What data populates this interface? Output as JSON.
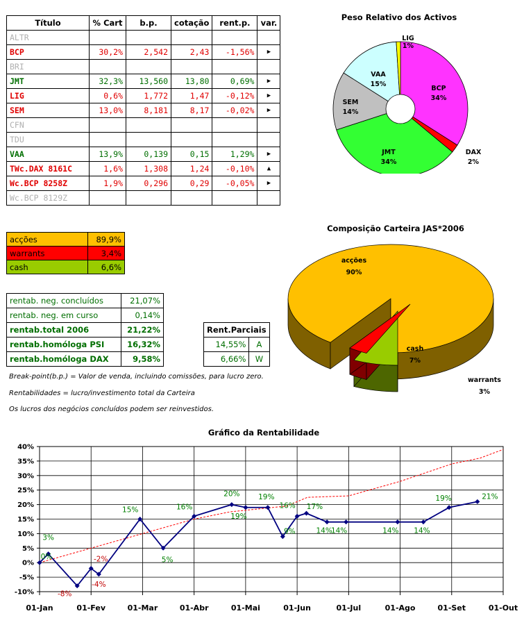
{
  "portfolio": {
    "headers": [
      "Título",
      "% Cart",
      "b.p.",
      "cotação",
      "rent.p.",
      "var."
    ],
    "rows": [
      {
        "ticker": "ALTR",
        "pct": "",
        "bp": "",
        "quote": "",
        "rent": "",
        "var": "",
        "color": "grey"
      },
      {
        "ticker": "BCP",
        "pct": "30,2%",
        "bp": "2,542",
        "quote": "2,43",
        "rent": "-1,56%",
        "var": "▶",
        "color": "red"
      },
      {
        "ticker": "BRI",
        "pct": "",
        "bp": "",
        "quote": "",
        "rent": "",
        "var": "",
        "color": "grey"
      },
      {
        "ticker": "JMT",
        "pct": "32,3%",
        "bp": "13,560",
        "quote": "13,80",
        "rent": "0,69%",
        "var": "▶",
        "color": "green"
      },
      {
        "ticker": "LIG",
        "pct": "0,6%",
        "bp": "1,772",
        "quote": "1,47",
        "rent": "-0,12%",
        "var": "▶",
        "color": "red"
      },
      {
        "ticker": "SEM",
        "pct": "13,0%",
        "bp": "8,181",
        "quote": "8,17",
        "rent": "-0,02%",
        "var": "▶",
        "color": "red"
      },
      {
        "ticker": "CFN",
        "pct": "",
        "bp": "",
        "quote": "",
        "rent": "",
        "var": "",
        "color": "grey"
      },
      {
        "ticker": "TDU",
        "pct": "",
        "bp": "",
        "quote": "",
        "rent": "",
        "var": "",
        "color": "grey"
      },
      {
        "ticker": "VAA",
        "pct": "13,9%",
        "bp": "0,139",
        "quote": "0,15",
        "rent": "1,29%",
        "var": "▶",
        "color": "green"
      },
      {
        "ticker": "TWc.DAX 8161C",
        "pct": "1,6%",
        "bp": "1,308",
        "quote": "1,24",
        "rent": "-0,10%",
        "var": "▲",
        "color": "red"
      },
      {
        "ticker": "Wc.BCP 8258Z",
        "pct": "1,9%",
        "bp": "0,296",
        "quote": "0,29",
        "rent": "-0,05%",
        "var": "▶",
        "color": "red"
      },
      {
        "ticker": "Wc.BCP 8129Z",
        "pct": "",
        "bp": "",
        "quote": "",
        "rent": "",
        "var": "",
        "color": "grey"
      }
    ]
  },
  "allocation": [
    {
      "label": "acções",
      "value": "89,9%",
      "bg": "#ffc000"
    },
    {
      "label": "warrants",
      "value": "3,4%",
      "bg": "#ff0000"
    },
    {
      "label": "cash",
      "value": "6,6%",
      "bg": "#99cc00"
    }
  ],
  "returns": [
    {
      "label": "rentab. neg. concluídos",
      "value": "21,07%",
      "bold": false
    },
    {
      "label": "rentab. neg. em curso",
      "value": "0,14%",
      "bold": false
    },
    {
      "label": "rentab.total 2006",
      "value": "21,22%",
      "bold": true
    },
    {
      "label": "rentab.homóloga PSI",
      "value": "16,32%",
      "bold": true
    },
    {
      "label": "rentab.homóloga DAX",
      "value": "9,58%",
      "bold": true
    }
  ],
  "partial": {
    "header": "Rent.Parciais",
    "rows": [
      {
        "value": "14,55%",
        "tag": "A"
      },
      {
        "value": "6,66%",
        "tag": "W"
      }
    ]
  },
  "notes": {
    "bp": "Break-point(b.p.) = Valor de venda, incluindo comissões, para lucro zero.",
    "rent": "Rentabilidades = lucro/investimento total da Carteira",
    "profits": "Os lucros dos negócios concluídos podem ser reinvestidos."
  },
  "chart_data": [
    {
      "type": "pie",
      "title": "Peso Relativo dos Activos",
      "slices": [
        {
          "label": "BCP",
          "value": 34,
          "color": "#ff33ff"
        },
        {
          "label": "DAX",
          "value": 2,
          "color": "#ff0000"
        },
        {
          "label": "JMT",
          "value": 34,
          "color": "#33ff33"
        },
        {
          "label": "SEM",
          "value": 14,
          "color": "#c0c0c0"
        },
        {
          "label": "VAA",
          "value": 15,
          "color": "#ccffff"
        },
        {
          "label": "LIG",
          "value": 1,
          "color": "#ffff00"
        }
      ]
    },
    {
      "type": "pie",
      "title": "Composição Carteira JAS*2006",
      "slices": [
        {
          "label": "acções",
          "value": 90,
          "color": "#ffc000"
        },
        {
          "label": "cash",
          "value": 7,
          "color": "#99cc00"
        },
        {
          "label": "warrants",
          "value": 3,
          "color": "#ff0000"
        }
      ]
    },
    {
      "type": "line",
      "title": "Gráfico da Rentabilidade",
      "x_ticks": [
        "01-Jan",
        "01-Fev",
        "01-Mar",
        "01-Abr",
        "01-Mai",
        "01-Jun",
        "01-Jul",
        "01-Ago",
        "01-Set",
        "01-Out"
      ],
      "ylim": [
        -10,
        40
      ],
      "y_ticks": [
        "-10%",
        "-5%",
        "0%",
        "5%",
        "10%",
        "15%",
        "20%",
        "25%",
        "30%",
        "35%",
        "40%"
      ],
      "series": [
        {
          "points": [
            [
              0,
              0
            ],
            [
              0.17,
              3
            ],
            [
              0.73,
              -8
            ],
            [
              1.0,
              -2
            ],
            [
              1.15,
              -4
            ],
            [
              1.95,
              15
            ],
            [
              2.4,
              5
            ],
            [
              3.0,
              16
            ],
            [
              3.73,
              20
            ],
            [
              4.0,
              19
            ],
            [
              4.43,
              19
            ],
            [
              4.72,
              9
            ],
            [
              5.0,
              16
            ],
            [
              5.18,
              17
            ],
            [
              5.58,
              14
            ],
            [
              5.95,
              14
            ],
            [
              6.95,
              14
            ],
            [
              7.45,
              14
            ],
            [
              7.95,
              19
            ],
            [
              8.5,
              21
            ]
          ],
          "labels": [
            "0%",
            "3%",
            "-8%",
            "-2%",
            "-4%",
            "15%",
            "5%",
            "16%",
            "20%",
            "19%",
            "19%",
            "9%",
            "16%",
            "17%",
            "14%",
            "14%",
            "14%",
            "14%",
            "19%",
            "21%"
          ],
          "color": "#000080"
        },
        {
          "style": "dashed",
          "points": [
            [
              0,
              0
            ],
            [
              1,
              5
            ],
            [
              2,
              10
            ],
            [
              3,
              15
            ],
            [
              3.7,
              17.5
            ],
            [
              4.8,
              19.5
            ],
            [
              5.2,
              22.5
            ],
            [
              6,
              23
            ],
            [
              7,
              28
            ],
            [
              8,
              34
            ],
            [
              8.55,
              36
            ],
            [
              9,
              39
            ]
          ],
          "color": "#ff0000"
        }
      ]
    }
  ]
}
